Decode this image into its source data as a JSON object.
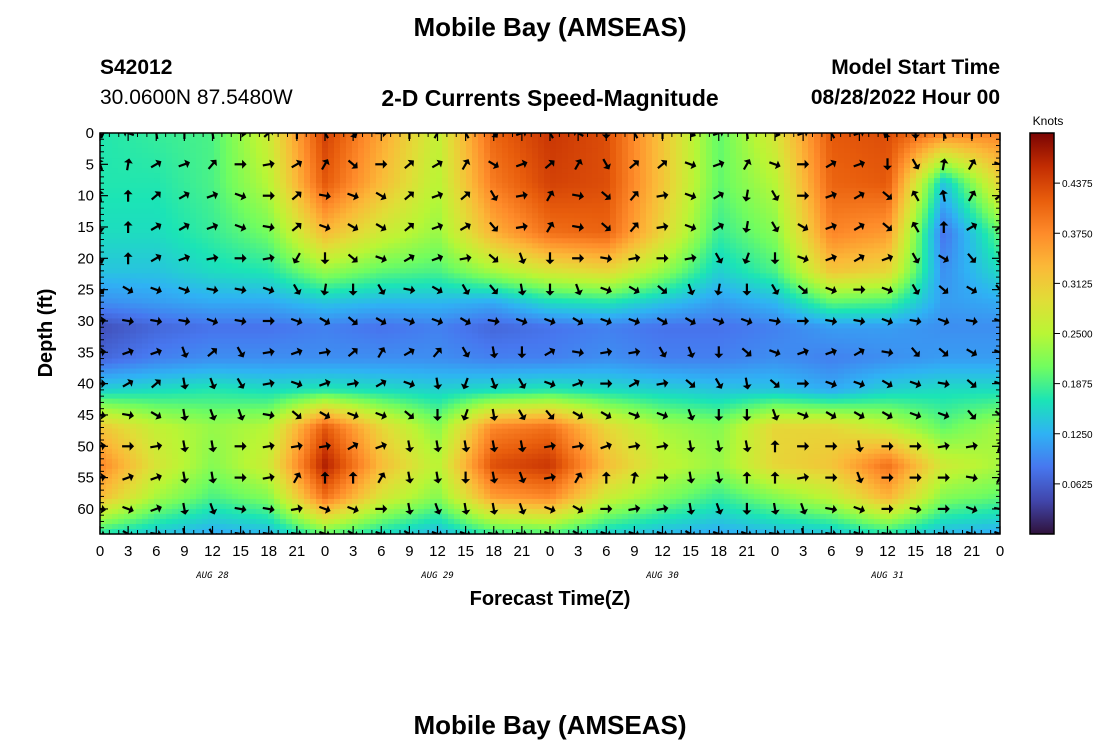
{
  "figure": {
    "title": "Mobile Bay (AMSEAS)",
    "station_id": "S42012",
    "station_coords": "30.0600N  87.5480W",
    "plot_title": "2-D Currents Speed-Magnitude",
    "model_start_label": "Model Start Time",
    "model_start_value": "08/28/2022 Hour 00",
    "repeated_title": "Mobile Bay (AMSEAS)"
  },
  "chart_data": {
    "type": "heatmap",
    "title": "2-D Currents Speed-Magnitude",
    "xlabel": "Forecast Time(Z)",
    "ylabel": "Depth (ft)",
    "x_tick_labels": [
      "0",
      "3",
      "6",
      "9",
      "12",
      "15",
      "18",
      "21",
      "0",
      "3",
      "6",
      "9",
      "12",
      "15",
      "18",
      "21",
      "0",
      "3",
      "6",
      "9",
      "12",
      "15",
      "18",
      "21",
      "0",
      "3",
      "6",
      "9",
      "12",
      "15",
      "18",
      "21",
      "0"
    ],
    "date_labels": [
      "AUG 28",
      "AUG 29",
      "AUG 30",
      "AUG 31"
    ],
    "xlim_hours": [
      0,
      96
    ],
    "y_ticks": [
      0,
      5,
      10,
      15,
      20,
      25,
      30,
      35,
      40,
      45,
      50,
      55,
      60
    ],
    "ylim": [
      0,
      64
    ],
    "y_inverted": true,
    "colorbar": {
      "label": "Knots",
      "ticks": [
        "0.4375",
        "0.3750",
        "0.3125",
        "0.2500",
        "0.1875",
        "0.1250",
        "0.0625"
      ],
      "range": [
        0,
        0.5
      ]
    },
    "colormap": [
      "#30123b",
      "#4146ac",
      "#4777ef",
      "#2fb2f4",
      "#1be4b6",
      "#71fd5f",
      "#b9f635",
      "#e1dd37",
      "#fbb938",
      "#fe8b2a",
      "#e85d0c",
      "#c22c02",
      "#7a0403"
    ],
    "speed_levels": [
      {
        "depth": 0,
        "values": [
          0.17,
          0.18,
          0.19,
          0.27,
          0.44,
          0.35,
          0.26,
          0.41,
          0.45,
          0.43,
          0.32,
          0.2,
          0.28,
          0.42,
          0.43,
          0.38,
          0.38
        ]
      },
      {
        "depth": 8,
        "values": [
          0.17,
          0.17,
          0.19,
          0.25,
          0.42,
          0.33,
          0.25,
          0.39,
          0.44,
          0.43,
          0.32,
          0.2,
          0.25,
          0.41,
          0.42,
          0.14,
          0.3
        ]
      },
      {
        "depth": 16,
        "values": [
          0.16,
          0.16,
          0.18,
          0.21,
          0.33,
          0.27,
          0.23,
          0.34,
          0.4,
          0.41,
          0.3,
          0.18,
          0.22,
          0.38,
          0.36,
          0.08,
          0.2
        ]
      },
      {
        "depth": 22,
        "values": [
          0.14,
          0.14,
          0.16,
          0.17,
          0.23,
          0.2,
          0.19,
          0.24,
          0.28,
          0.3,
          0.23,
          0.15,
          0.19,
          0.32,
          0.3,
          0.1,
          0.16
        ]
      },
      {
        "depth": 27,
        "values": [
          0.1,
          0.11,
          0.12,
          0.12,
          0.14,
          0.13,
          0.13,
          0.12,
          0.16,
          0.17,
          0.14,
          0.11,
          0.13,
          0.2,
          0.19,
          0.11,
          0.12
        ]
      },
      {
        "depth": 31,
        "values": [
          0.05,
          0.07,
          0.08,
          0.08,
          0.09,
          0.08,
          0.09,
          0.07,
          0.08,
          0.09,
          0.08,
          0.08,
          0.09,
          0.11,
          0.11,
          0.1,
          0.1
        ]
      },
      {
        "depth": 36,
        "values": [
          0.07,
          0.09,
          0.1,
          0.1,
          0.1,
          0.1,
          0.1,
          0.09,
          0.09,
          0.1,
          0.09,
          0.09,
          0.1,
          0.09,
          0.1,
          0.11,
          0.11
        ]
      },
      {
        "depth": 41,
        "values": [
          0.15,
          0.16,
          0.17,
          0.16,
          0.17,
          0.16,
          0.15,
          0.16,
          0.17,
          0.16,
          0.15,
          0.14,
          0.14,
          0.12,
          0.15,
          0.16,
          0.16
        ]
      },
      {
        "depth": 47,
        "values": [
          0.32,
          0.26,
          0.23,
          0.25,
          0.42,
          0.3,
          0.22,
          0.38,
          0.4,
          0.3,
          0.24,
          0.22,
          0.3,
          0.3,
          0.26,
          0.2,
          0.24
        ]
      },
      {
        "depth": 53,
        "values": [
          0.38,
          0.28,
          0.22,
          0.27,
          0.47,
          0.33,
          0.25,
          0.43,
          0.45,
          0.33,
          0.26,
          0.23,
          0.3,
          0.32,
          0.4,
          0.27,
          0.24
        ]
      },
      {
        "depth": 58,
        "values": [
          0.33,
          0.24,
          0.19,
          0.22,
          0.4,
          0.28,
          0.22,
          0.36,
          0.38,
          0.27,
          0.22,
          0.18,
          0.22,
          0.26,
          0.34,
          0.22,
          0.2
        ]
      },
      {
        "depth": 64,
        "values": [
          0.17,
          0.14,
          0.12,
          0.13,
          0.2,
          0.16,
          0.13,
          0.18,
          0.19,
          0.15,
          0.13,
          0.12,
          0.13,
          0.14,
          0.17,
          0.13,
          0.12
        ]
      }
    ],
    "vector_x_hours": [
      0,
      3,
      6,
      9,
      12,
      15,
      18,
      21,
      24,
      27,
      30,
      33,
      36,
      39,
      42,
      45,
      48,
      51,
      54,
      57,
      60,
      63,
      66,
      69,
      72,
      75,
      78,
      81,
      84,
      87,
      90,
      93,
      96
    ],
    "vector_depths": [
      0,
      5,
      10,
      15,
      20,
      25,
      30,
      35,
      40,
      45,
      50,
      55,
      60,
      64
    ],
    "vector_direction_angles_deg": [
      [
        -70,
        160,
        100,
        90,
        100,
        -10,
        40,
        90,
        120,
        -60,
        0,
        90,
        60,
        120,
        -50,
        20,
        120,
        150,
        -90,
        120,
        90,
        -30,
        20,
        100,
        -20,
        20,
        120,
        20,
        -120,
        -90,
        110,
        90,
        -10
      ],
      [
        110,
        80,
        30,
        20,
        50,
        0,
        10,
        30,
        60,
        -40,
        0,
        40,
        30,
        60,
        -30,
        20,
        40,
        60,
        -60,
        40,
        40,
        -20,
        20,
        60,
        -20,
        0,
        30,
        20,
        -90,
        -60,
        80,
        60,
        -20
      ],
      [
        100,
        90,
        40,
        30,
        20,
        -20,
        0,
        40,
        -10,
        -20,
        -30,
        40,
        20,
        40,
        -60,
        10,
        60,
        -10,
        -40,
        50,
        10,
        -20,
        30,
        -100,
        -60,
        0,
        20,
        30,
        -40,
        120,
        100,
        60,
        40
      ],
      [
        -80,
        90,
        30,
        30,
        20,
        -20,
        -10,
        40,
        -20,
        -30,
        -30,
        40,
        20,
        30,
        -50,
        10,
        60,
        -10,
        -40,
        50,
        10,
        -20,
        30,
        -100,
        -60,
        -30,
        20,
        30,
        -40,
        120,
        90,
        30,
        40
      ],
      [
        -70,
        90,
        30,
        20,
        10,
        0,
        10,
        -120,
        -90,
        -40,
        -20,
        30,
        20,
        10,
        -40,
        -70,
        -90,
        0,
        -10,
        10,
        0,
        10,
        -60,
        -110,
        -90,
        -20,
        20,
        30,
        20,
        -60,
        -30,
        -50,
        -80
      ],
      [
        -50,
        -30,
        -20,
        -20,
        -10,
        -10,
        -20,
        -60,
        -100,
        -90,
        -60,
        -10,
        -30,
        -60,
        -50,
        -80,
        -90,
        -70,
        -20,
        -30,
        -40,
        -70,
        -100,
        -90,
        -60,
        -40,
        -20,
        0,
        -20,
        -60,
        -40,
        -30,
        -50
      ],
      [
        10,
        -10,
        -10,
        -10,
        -20,
        -10,
        0,
        -20,
        -30,
        -40,
        -30,
        -20,
        -20,
        -30,
        -10,
        -20,
        -20,
        -30,
        -20,
        -20,
        -30,
        -30,
        -20,
        -20,
        -10,
        0,
        -10,
        -10,
        -20,
        -10,
        -20,
        -10,
        -20
      ],
      [
        10,
        20,
        20,
        -70,
        40,
        -60,
        10,
        20,
        10,
        40,
        60,
        30,
        50,
        -60,
        -80,
        -90,
        30,
        -10,
        10,
        10,
        -60,
        -70,
        -90,
        -40,
        -20,
        20,
        20,
        30,
        -10,
        -50,
        -40,
        -30,
        -20
      ],
      [
        0,
        30,
        40,
        -80,
        -70,
        -60,
        10,
        -20,
        20,
        10,
        30,
        -20,
        -80,
        -110,
        -70,
        -60,
        -20,
        20,
        0,
        30,
        10,
        -40,
        -60,
        -80,
        -40,
        0,
        -20,
        -20,
        -30,
        -20,
        -10,
        -40,
        -20
      ],
      [
        -10,
        -10,
        -30,
        -80,
        -70,
        -70,
        -10,
        -40,
        -30,
        -20,
        -20,
        -40,
        -90,
        -110,
        -80,
        -60,
        -50,
        -30,
        -30,
        -20,
        -20,
        -70,
        -90,
        -90,
        -70,
        -20,
        -30,
        -30,
        -30,
        -20,
        -20,
        -50,
        -40
      ],
      [
        10,
        0,
        10,
        -80,
        -80,
        0,
        10,
        10,
        10,
        30,
        20,
        -80,
        -80,
        -80,
        -80,
        -80,
        10,
        10,
        20,
        10,
        10,
        -80,
        -80,
        -80,
        90,
        0,
        0,
        -80,
        0,
        0,
        10,
        10,
        70
      ],
      [
        10,
        20,
        20,
        -80,
        -80,
        0,
        10,
        60,
        90,
        90,
        60,
        -80,
        -80,
        -90,
        -80,
        -70,
        10,
        60,
        90,
        80,
        0,
        -80,
        -80,
        90,
        90,
        10,
        0,
        -70,
        0,
        0,
        0,
        -10,
        60
      ],
      [
        -10,
        -20,
        20,
        -80,
        -70,
        -10,
        -10,
        10,
        -20,
        -20,
        0,
        -80,
        -70,
        -80,
        -80,
        -70,
        -20,
        -30,
        0,
        10,
        10,
        -80,
        -70,
        -90,
        -80,
        -70,
        -10,
        -20,
        0,
        -10,
        0,
        -20,
        -10
      ],
      [
        -20,
        -30,
        -10,
        -80,
        -60,
        -10,
        -10,
        -10,
        -20,
        -30,
        -20,
        -30,
        -20,
        -20,
        -10,
        -10,
        -20,
        -30,
        -20,
        -20,
        -20,
        -30,
        -20,
        -20,
        -10,
        -80,
        -10,
        -20,
        -10,
        0,
        -10,
        -20,
        -20
      ]
    ]
  }
}
